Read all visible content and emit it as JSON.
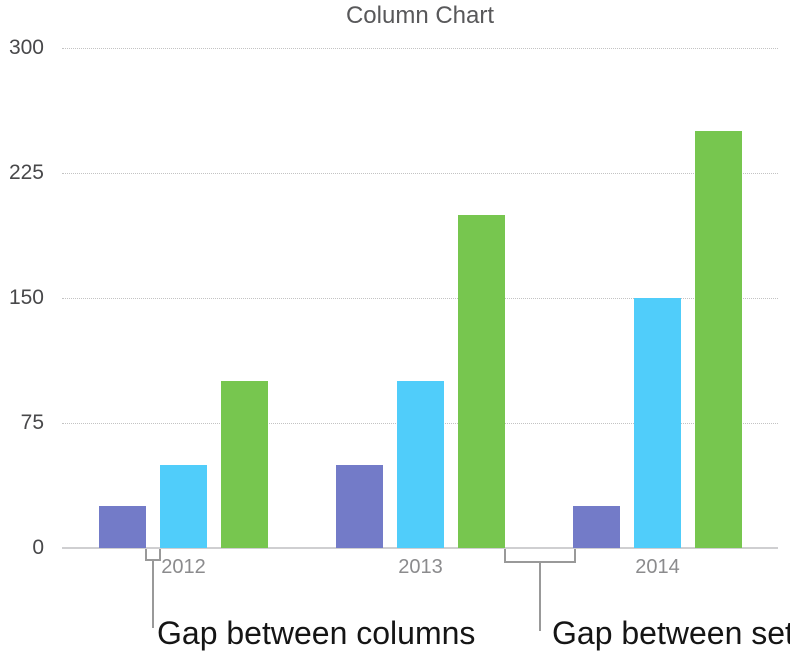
{
  "chart_data": {
    "type": "bar",
    "title": "Column Chart",
    "categories": [
      "2012",
      "2013",
      "2014"
    ],
    "series": [
      {
        "color": "#737bc8",
        "values": [
          25,
          50,
          25
        ]
      },
      {
        "color": "#50cdfa",
        "values": [
          50,
          100,
          150
        ]
      },
      {
        "color": "#77c64f",
        "values": [
          100,
          200,
          250
        ]
      }
    ],
    "ylim": [
      0,
      300
    ],
    "yticks": [
      0,
      75,
      150,
      225,
      300
    ],
    "xlabel": "",
    "ylabel": "",
    "grid": "dotted horizontal",
    "legend": "none"
  },
  "annotations": {
    "gap_between_columns": {
      "label": "Gap between columns"
    },
    "gap_between_sets": {
      "label": "Gap between sets"
    }
  }
}
